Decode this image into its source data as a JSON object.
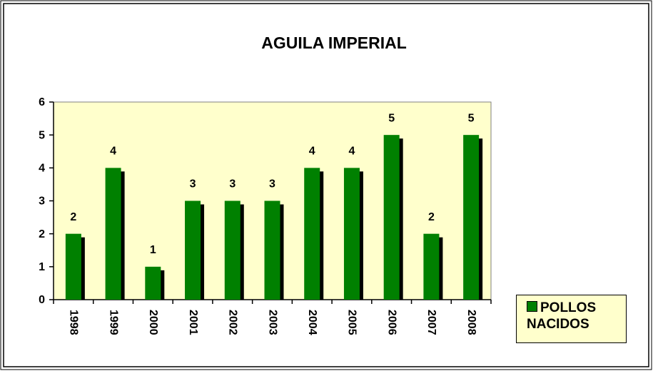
{
  "chart_data": {
    "type": "bar",
    "title": "AGUILA IMPERIAL",
    "categories": [
      "1998",
      "1999",
      "2000",
      "2001",
      "2002",
      "2003",
      "2004",
      "2005",
      "2006",
      "2007",
      "2008"
    ],
    "series": [
      {
        "name": "POLLOS NACIDOS",
        "color": "#008000",
        "values": [
          2,
          4,
          1,
          3,
          3,
          3,
          4,
          4,
          5,
          2,
          5
        ]
      }
    ],
    "ylim": [
      0,
      6
    ],
    "yticks": [
      0,
      1,
      2,
      3,
      4,
      5,
      6
    ],
    "grid": false,
    "legend": "right",
    "data_labels": true
  }
}
